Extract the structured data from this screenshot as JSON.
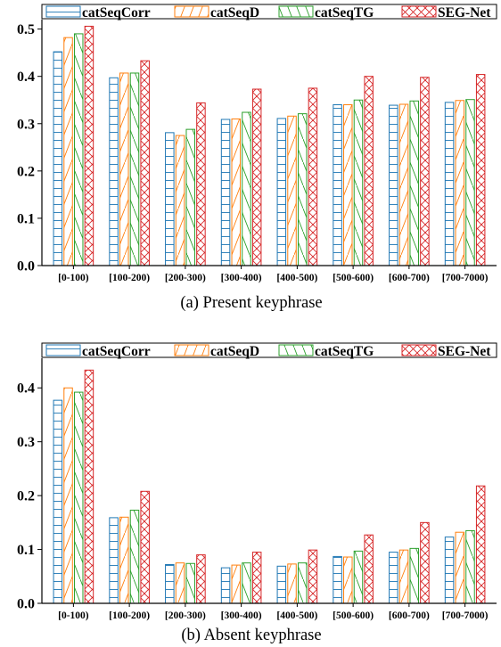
{
  "series_style": [
    {
      "color": "#1f77b4",
      "pattern": "horizontal-lines"
    },
    {
      "color": "#ff7f0e",
      "pattern": "forward-diagonal"
    },
    {
      "color": "#2ca02c",
      "pattern": "back-diagonal"
    },
    {
      "color": "#d62728",
      "pattern": "cross-hatch"
    }
  ],
  "chart_data": [
    {
      "type": "bar",
      "caption": "(a) Present keyphrase",
      "legend_position": "top",
      "grid": false,
      "categories": [
        "[0-100)",
        "[100-200)",
        "[200-300)",
        "[300-400)",
        "[400-500)",
        "[500-600)",
        "[600-700)",
        "[700-7000)"
      ],
      "series": [
        {
          "name": "catSeqCorr",
          "values": [
            0.452,
            0.397,
            0.281,
            0.309,
            0.311,
            0.34,
            0.339,
            0.345
          ]
        },
        {
          "name": "catSeqD",
          "values": [
            0.482,
            0.407,
            0.275,
            0.31,
            0.316,
            0.34,
            0.341,
            0.349
          ]
        },
        {
          "name": "catSeqTG",
          "values": [
            0.49,
            0.407,
            0.288,
            0.324,
            0.321,
            0.35,
            0.348,
            0.351
          ]
        },
        {
          "name": "SEG-Net",
          "values": [
            0.506,
            0.433,
            0.344,
            0.373,
            0.375,
            0.4,
            0.398,
            0.404
          ]
        }
      ],
      "ylim": [
        0,
        0.52
      ],
      "yticks": [
        "0.0",
        "0.1",
        "0.2",
        "0.3",
        "0.4",
        "0.5"
      ]
    },
    {
      "type": "bar",
      "caption": "(b) Absent keyphrase",
      "legend_position": "top",
      "grid": false,
      "categories": [
        "[0-100)",
        "[100-200)",
        "[200-300)",
        "[300-400)",
        "[400-500)",
        "[500-600)",
        "[600-700)",
        "[700-7000)"
      ],
      "series": [
        {
          "name": "catSeqCorr",
          "values": [
            0.377,
            0.159,
            0.072,
            0.066,
            0.069,
            0.087,
            0.095,
            0.123
          ]
        },
        {
          "name": "catSeqD",
          "values": [
            0.4,
            0.16,
            0.075,
            0.071,
            0.073,
            0.086,
            0.099,
            0.132
          ]
        },
        {
          "name": "catSeqTG",
          "values": [
            0.392,
            0.173,
            0.074,
            0.075,
            0.075,
            0.097,
            0.102,
            0.135
          ]
        },
        {
          "name": "SEG-Net",
          "values": [
            0.433,
            0.208,
            0.09,
            0.095,
            0.099,
            0.127,
            0.15,
            0.218
          ]
        }
      ],
      "ylim": [
        0,
        0.455
      ],
      "yticks": [
        "0.0",
        "0.1",
        "0.2",
        "0.3",
        "0.4"
      ]
    }
  ]
}
